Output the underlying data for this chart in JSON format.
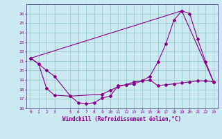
{
  "xlabel": "Windchill (Refroidissement éolien,°C)",
  "xlim": [
    -0.5,
    23.5
  ],
  "ylim": [
    16,
    27
  ],
  "yticks": [
    16,
    17,
    18,
    19,
    20,
    21,
    22,
    23,
    24,
    25,
    26
  ],
  "xticks": [
    0,
    1,
    2,
    3,
    5,
    6,
    7,
    8,
    9,
    10,
    11,
    12,
    13,
    14,
    15,
    16,
    17,
    18,
    19,
    20,
    21,
    22,
    23
  ],
  "bg_color": "#cce8f0",
  "line_color": "#880088",
  "grid_color": "#99cccc",
  "line1_x": [
    0,
    1,
    2,
    3,
    5,
    6,
    7,
    8,
    9,
    10,
    11,
    12,
    13,
    14,
    15,
    16,
    17,
    18,
    19,
    20,
    21,
    22,
    23
  ],
  "line1_y": [
    21.3,
    20.7,
    20.0,
    19.4,
    17.3,
    16.6,
    16.5,
    16.6,
    17.1,
    17.3,
    18.4,
    18.5,
    18.8,
    18.9,
    19.4,
    20.9,
    22.8,
    25.3,
    26.3,
    26.0,
    23.3,
    20.9,
    18.8
  ],
  "line2_x": [
    0,
    1,
    2,
    3,
    5,
    9,
    10,
    11,
    12,
    13,
    14,
    15,
    16,
    17,
    18,
    19,
    20,
    21,
    22,
    23
  ],
  "line2_y": [
    21.3,
    20.7,
    18.1,
    17.4,
    17.3,
    17.5,
    17.9,
    18.3,
    18.5,
    18.6,
    18.9,
    19.0,
    18.4,
    18.5,
    18.6,
    18.7,
    18.8,
    18.9,
    18.9,
    18.8
  ],
  "line3_x": [
    0,
    19,
    23
  ],
  "line3_y": [
    21.3,
    26.3,
    18.8
  ]
}
